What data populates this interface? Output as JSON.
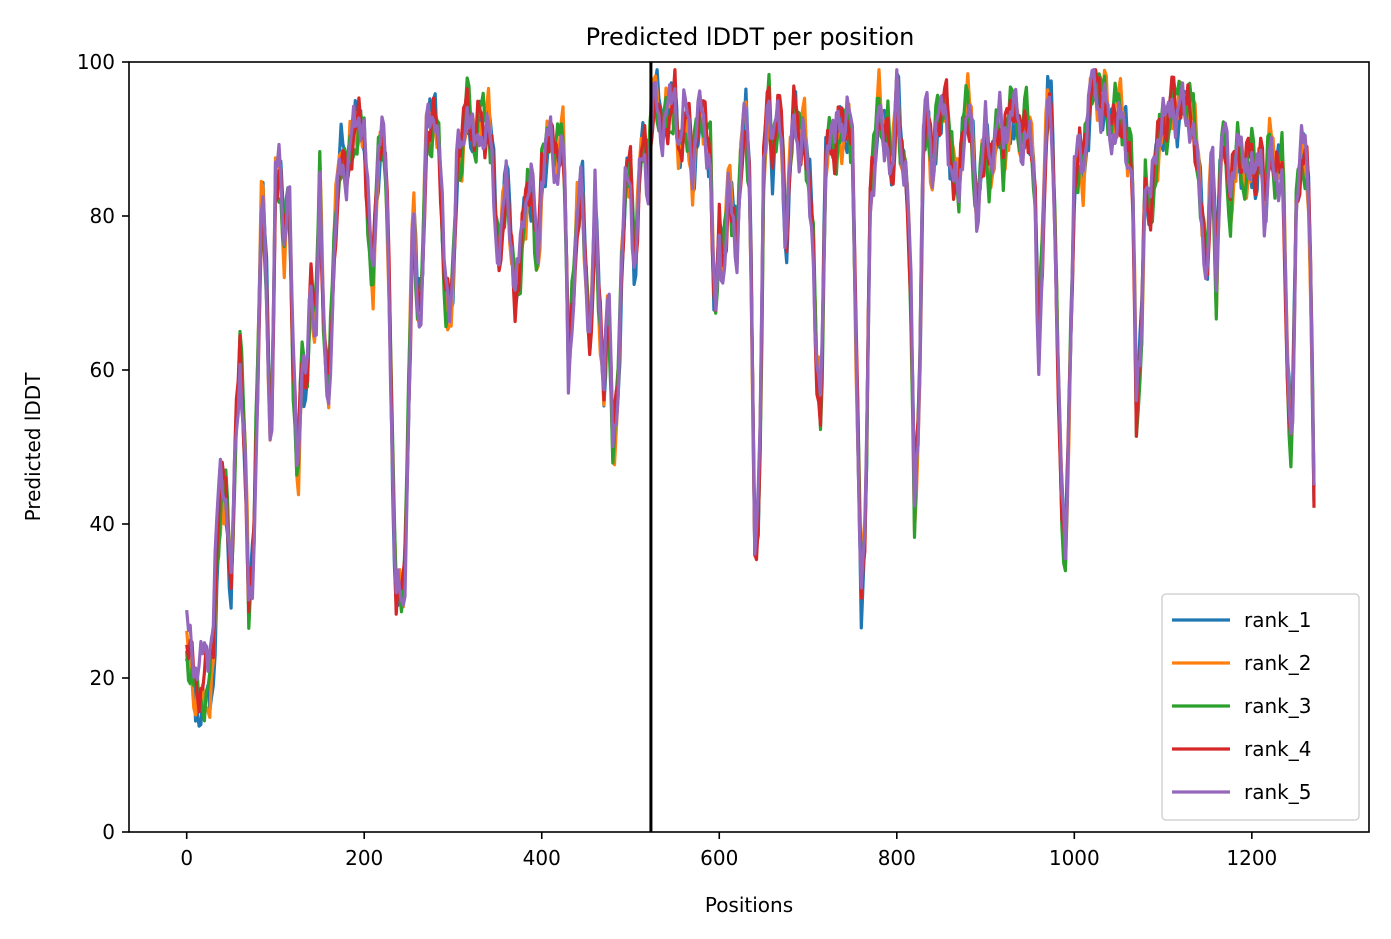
{
  "chart_data": {
    "type": "line",
    "title": "Predicted lDDT per position",
    "xlabel": "Positions",
    "ylabel": "Predicted lDDT",
    "xlim": [
      -65,
      1332
    ],
    "ylim": [
      0,
      100
    ],
    "xticks": [
      0,
      200,
      400,
      600,
      800,
      1000,
      1200
    ],
    "yticks": [
      0,
      20,
      40,
      60,
      80,
      100
    ],
    "grid": false,
    "legend_position": "lower-right",
    "vline_x": 523,
    "series": [
      {
        "name": "rank_1",
        "color": "#1f77b4"
      },
      {
        "name": "rank_2",
        "color": "#ff7f0e"
      },
      {
        "name": "rank_3",
        "color": "#2ca02c"
      },
      {
        "name": "rank_4",
        "color": "#d62728"
      },
      {
        "name": "rank_5",
        "color": "#9467bd"
      }
    ],
    "x_range": [
      0,
      1270
    ],
    "base_profile": [
      [
        0,
        24
      ],
      [
        5,
        22
      ],
      [
        10,
        19
      ],
      [
        15,
        18
      ],
      [
        20,
        19
      ],
      [
        25,
        20
      ],
      [
        30,
        24
      ],
      [
        35,
        38
      ],
      [
        40,
        45
      ],
      [
        45,
        43
      ],
      [
        50,
        31
      ],
      [
        55,
        50
      ],
      [
        60,
        62
      ],
      [
        65,
        52
      ],
      [
        70,
        29
      ],
      [
        75,
        35
      ],
      [
        80,
        60
      ],
      [
        85,
        85
      ],
      [
        90,
        70
      ],
      [
        95,
        48
      ],
      [
        100,
        85
      ],
      [
        105,
        86
      ],
      [
        110,
        76
      ],
      [
        115,
        86
      ],
      [
        120,
        60
      ],
      [
        125,
        45
      ],
      [
        130,
        62
      ],
      [
        135,
        57
      ],
      [
        140,
        71
      ],
      [
        145,
        64
      ],
      [
        150,
        85
      ],
      [
        155,
        62
      ],
      [
        160,
        57
      ],
      [
        165,
        73
      ],
      [
        170,
        84
      ],
      [
        175,
        88
      ],
      [
        180,
        86
      ],
      [
        185,
        90
      ],
      [
        190,
        91
      ],
      [
        195,
        93
      ],
      [
        200,
        91
      ],
      [
        205,
        78
      ],
      [
        210,
        72
      ],
      [
        215,
        87
      ],
      [
        220,
        90
      ],
      [
        225,
        85
      ],
      [
        230,
        60
      ],
      [
        235,
        31
      ],
      [
        240,
        31
      ],
      [
        245,
        30
      ],
      [
        250,
        55
      ],
      [
        255,
        82
      ],
      [
        260,
        68
      ],
      [
        265,
        70
      ],
      [
        270,
        92
      ],
      [
        275,
        91
      ],
      [
        280,
        94
      ],
      [
        285,
        89
      ],
      [
        290,
        72
      ],
      [
        295,
        67
      ],
      [
        300,
        72
      ],
      [
        305,
        88
      ],
      [
        310,
        87
      ],
      [
        315,
        95
      ],
      [
        320,
        92
      ],
      [
        325,
        88
      ],
      [
        330,
        93
      ],
      [
        335,
        91
      ],
      [
        340,
        92
      ],
      [
        345,
        87
      ],
      [
        350,
        76
      ],
      [
        355,
        78
      ],
      [
        360,
        85
      ],
      [
        365,
        78
      ],
      [
        370,
        70
      ],
      [
        375,
        73
      ],
      [
        380,
        80
      ],
      [
        385,
        84
      ],
      [
        390,
        83
      ],
      [
        395,
        72
      ],
      [
        400,
        85
      ],
      [
        405,
        89
      ],
      [
        410,
        90
      ],
      [
        415,
        86
      ],
      [
        420,
        89
      ],
      [
        425,
        90
      ],
      [
        430,
        60
      ],
      [
        435,
        70
      ],
      [
        440,
        80
      ],
      [
        445,
        85
      ],
      [
        450,
        72
      ],
      [
        455,
        63
      ],
      [
        460,
        82
      ],
      [
        465,
        68
      ],
      [
        470,
        58
      ],
      [
        475,
        70
      ],
      [
        480,
        50
      ],
      [
        485,
        55
      ],
      [
        490,
        73
      ],
      [
        495,
        85
      ],
      [
        500,
        85
      ],
      [
        505,
        72
      ],
      [
        510,
        85
      ],
      [
        515,
        90
      ],
      [
        520,
        85
      ],
      [
        525,
        96
      ],
      [
        530,
        95
      ],
      [
        535,
        91
      ],
      [
        540,
        94
      ],
      [
        545,
        93
      ],
      [
        550,
        96
      ],
      [
        555,
        88
      ],
      [
        560,
        92
      ],
      [
        565,
        92
      ],
      [
        570,
        85
      ],
      [
        575,
        92
      ],
      [
        580,
        93
      ],
      [
        585,
        90
      ],
      [
        590,
        88
      ],
      [
        595,
        65
      ],
      [
        600,
        78
      ],
      [
        605,
        73
      ],
      [
        610,
        84
      ],
      [
        615,
        80
      ],
      [
        620,
        76
      ],
      [
        625,
        90
      ],
      [
        630,
        93
      ],
      [
        635,
        82
      ],
      [
        640,
        37
      ],
      [
        645,
        42
      ],
      [
        650,
        85
      ],
      [
        655,
        97
      ],
      [
        660,
        87
      ],
      [
        665,
        92
      ],
      [
        670,
        92
      ],
      [
        675,
        75
      ],
      [
        680,
        87
      ],
      [
        685,
        95
      ],
      [
        690,
        89
      ],
      [
        695,
        92
      ],
      [
        700,
        85
      ],
      [
        705,
        80
      ],
      [
        710,
        60
      ],
      [
        715,
        55
      ],
      [
        720,
        88
      ],
      [
        725,
        92
      ],
      [
        730,
        88
      ],
      [
        735,
        92
      ],
      [
        740,
        91
      ],
      [
        745,
        93
      ],
      [
        750,
        88
      ],
      [
        755,
        58
      ],
      [
        760,
        31
      ],
      [
        765,
        40
      ],
      [
        770,
        82
      ],
      [
        775,
        88
      ],
      [
        780,
        95
      ],
      [
        785,
        89
      ],
      [
        790,
        92
      ],
      [
        795,
        85
      ],
      [
        800,
        97
      ],
      [
        805,
        88
      ],
      [
        810,
        87
      ],
      [
        815,
        75
      ],
      [
        820,
        42
      ],
      [
        825,
        55
      ],
      [
        830,
        90
      ],
      [
        835,
        93
      ],
      [
        840,
        85
      ],
      [
        845,
        93
      ],
      [
        850,
        92
      ],
      [
        855,
        95
      ],
      [
        860,
        88
      ],
      [
        865,
        85
      ],
      [
        870,
        83
      ],
      [
        875,
        92
      ],
      [
        880,
        95
      ],
      [
        885,
        90
      ],
      [
        890,
        80
      ],
      [
        895,
        87
      ],
      [
        900,
        91
      ],
      [
        905,
        85
      ],
      [
        910,
        90
      ],
      [
        915,
        93
      ],
      [
        920,
        87
      ],
      [
        925,
        92
      ],
      [
        930,
        94
      ],
      [
        935,
        93
      ],
      [
        940,
        88
      ],
      [
        945,
        93
      ],
      [
        950,
        90
      ],
      [
        955,
        85
      ],
      [
        960,
        62
      ],
      [
        965,
        80
      ],
      [
        970,
        95
      ],
      [
        975,
        93
      ],
      [
        980,
        70
      ],
      [
        985,
        45
      ],
      [
        990,
        35
      ],
      [
        995,
        60
      ],
      [
        1000,
        84
      ],
      [
        1005,
        88
      ],
      [
        1010,
        86
      ],
      [
        1015,
        92
      ],
      [
        1020,
        97
      ],
      [
        1025,
        96
      ],
      [
        1030,
        94
      ],
      [
        1035,
        96
      ],
      [
        1040,
        90
      ],
      [
        1045,
        93
      ],
      [
        1050,
        94
      ],
      [
        1055,
        92
      ],
      [
        1060,
        88
      ],
      [
        1065,
        90
      ],
      [
        1070,
        55
      ],
      [
        1075,
        62
      ],
      [
        1080,
        86
      ],
      [
        1085,
        80
      ],
      [
        1090,
        85
      ],
      [
        1095,
        90
      ],
      [
        1100,
        93
      ],
      [
        1105,
        90
      ],
      [
        1110,
        95
      ],
      [
        1115,
        93
      ],
      [
        1120,
        95
      ],
      [
        1125,
        93
      ],
      [
        1130,
        94
      ],
      [
        1135,
        92
      ],
      [
        1140,
        85
      ],
      [
        1145,
        78
      ],
      [
        1150,
        74
      ],
      [
        1155,
        90
      ],
      [
        1160,
        70
      ],
      [
        1165,
        90
      ],
      [
        1170,
        91
      ],
      [
        1175,
        80
      ],
      [
        1180,
        87
      ],
      [
        1185,
        90
      ],
      [
        1190,
        84
      ],
      [
        1195,
        86
      ],
      [
        1200,
        88
      ],
      [
        1205,
        84
      ],
      [
        1210,
        88
      ],
      [
        1215,
        80
      ],
      [
        1220,
        90
      ],
      [
        1225,
        85
      ],
      [
        1230,
        86
      ],
      [
        1235,
        88
      ],
      [
        1240,
        60
      ],
      [
        1245,
        48
      ],
      [
        1250,
        82
      ],
      [
        1255,
        88
      ],
      [
        1260,
        88
      ],
      [
        1265,
        82
      ],
      [
        1270,
        45
      ]
    ]
  }
}
